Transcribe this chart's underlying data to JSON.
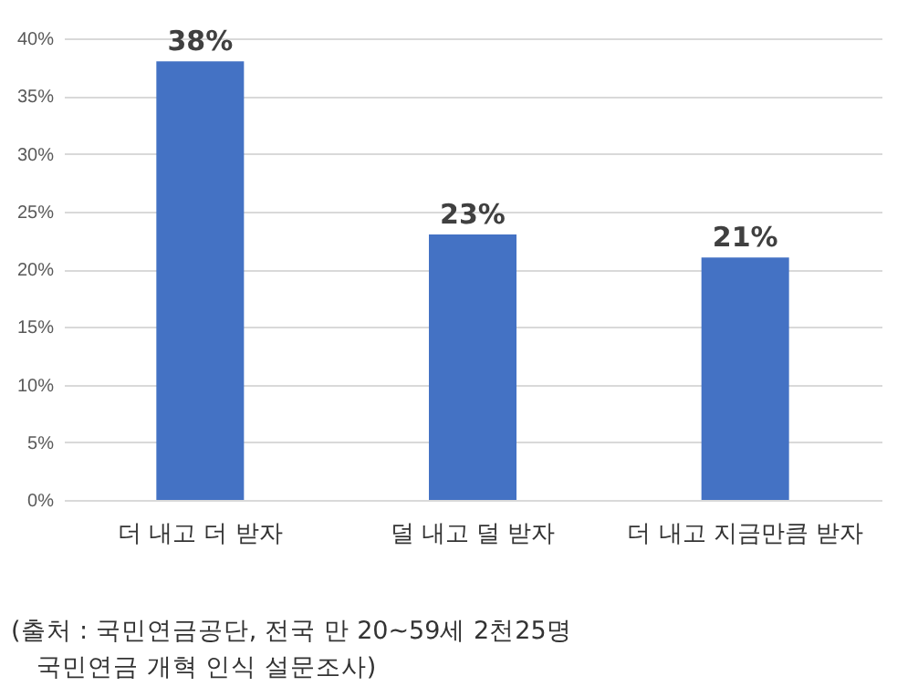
{
  "chart_data": {
    "type": "bar",
    "categories": [
      "더 내고 더 받자",
      "덜 내고 덜 받자",
      "더 내고 지금만큼 받자"
    ],
    "values": [
      38,
      23,
      21
    ],
    "value_labels": [
      "38%",
      "23%",
      "21%"
    ],
    "color": "#4472c4",
    "ylim": [
      0,
      40
    ],
    "yticks": [
      {
        "value": 0,
        "label": "0%"
      },
      {
        "value": 5,
        "label": "5%"
      },
      {
        "value": 10,
        "label": "10%"
      },
      {
        "value": 15,
        "label": "15%"
      },
      {
        "value": 20,
        "label": "20%"
      },
      {
        "value": 25,
        "label": "25%"
      },
      {
        "value": 30,
        "label": "30%"
      },
      {
        "value": 35,
        "label": "35%"
      },
      {
        "value": 40,
        "label": "40%"
      }
    ],
    "grid": "y",
    "annotations": [
      "(출처 : 국민연금공단, 전국 만 20~59세 2천25명",
      "국민연금 개혁 인식 설문조사)"
    ]
  }
}
